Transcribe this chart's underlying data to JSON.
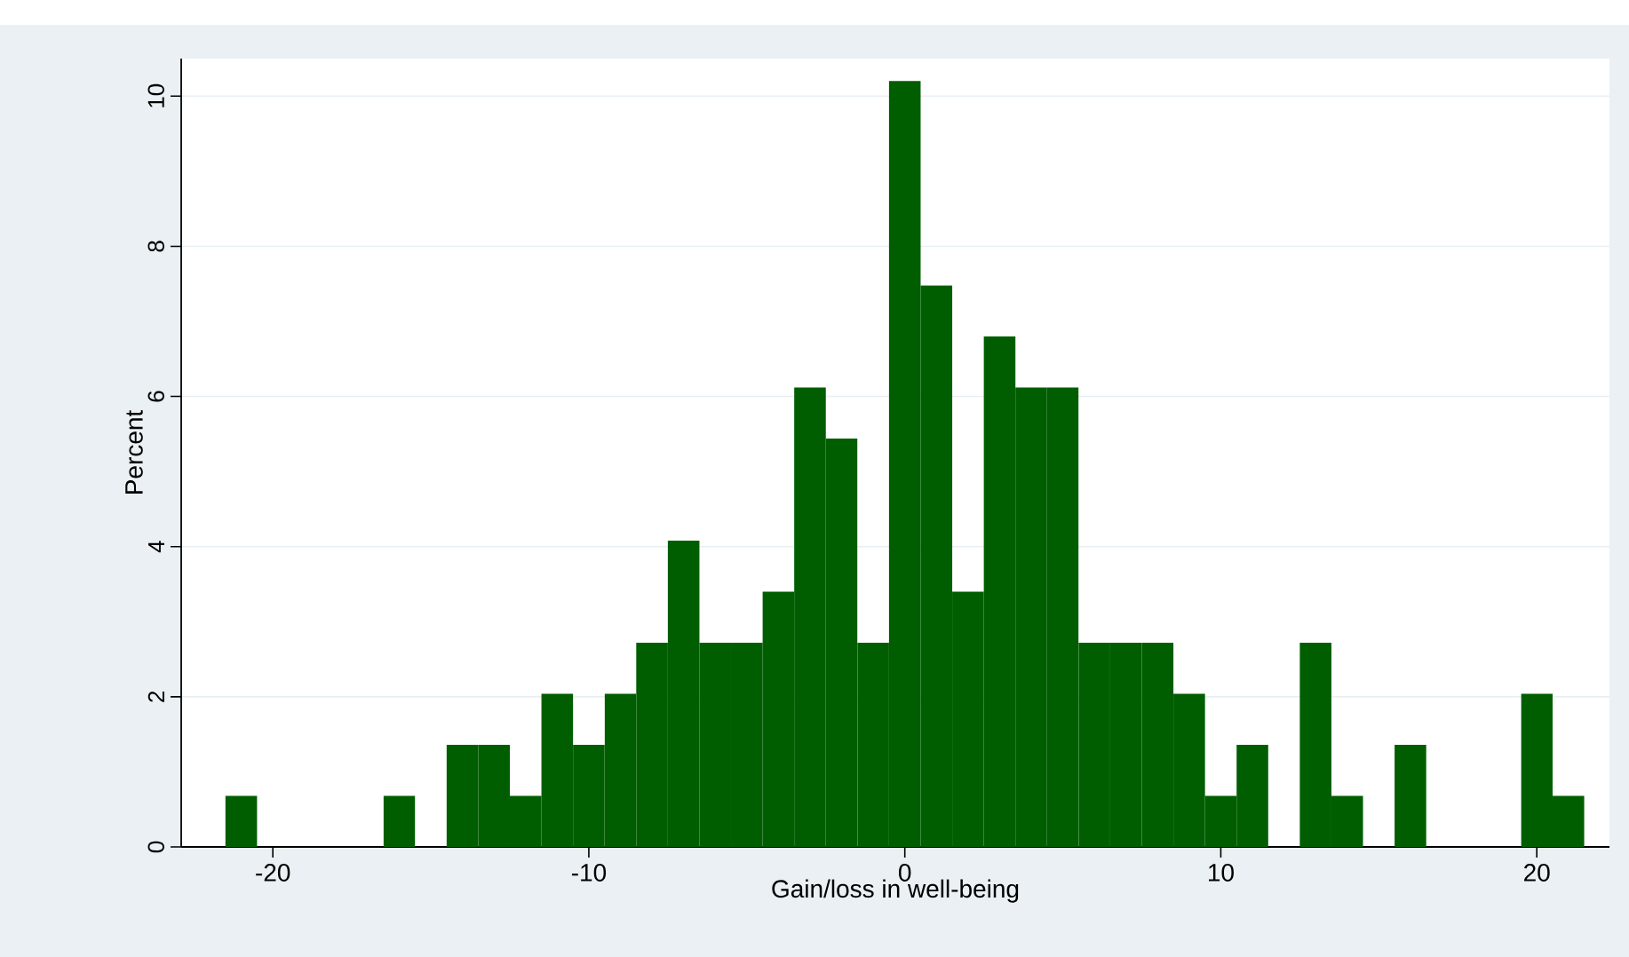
{
  "chart_data": {
    "type": "histogram",
    "xlabel": "Gain/loss in well-being",
    "ylabel": "Percent",
    "bins": [
      -21.5,
      -20.5,
      -19.5,
      -18.5,
      -17.5,
      -16.5,
      -15.5,
      -14.5,
      -13.5,
      -12.5,
      -11.5,
      -10.5,
      -9.5,
      -8.5,
      -7.5,
      -6.5,
      -5.5,
      -4.5,
      -3.5,
      -2.5,
      -1.5,
      -0.5,
      0.5,
      1.5,
      2.5,
      3.5,
      4.5,
      5.5,
      6.5,
      7.5,
      8.5,
      9.5,
      10.5,
      11.5,
      12.5,
      13.5,
      14.5,
      15.5,
      16.5,
      17.5,
      18.5,
      19.5,
      20.5,
      21.5
    ],
    "values": [
      0.68,
      0,
      0,
      0,
      0,
      0.68,
      0,
      1.36,
      1.36,
      0.68,
      2.04,
      1.36,
      2.04,
      2.72,
      4.08,
      2.72,
      2.72,
      3.4,
      6.12,
      5.44,
      2.72,
      10.2,
      7.48,
      3.4,
      6.8,
      6.12,
      6.12,
      2.72,
      2.72,
      2.72,
      2.04,
      0.68,
      1.36,
      0,
      2.72,
      0.68,
      0,
      1.36,
      0,
      0,
      0,
      2.04,
      0.68
    ],
    "color": "#005e00",
    "xlim": [
      -22.9,
      22.3
    ],
    "ylim": [
      0,
      10.5
    ],
    "xticks": [
      -20,
      -10,
      0,
      10,
      20
    ],
    "yticks": [
      0,
      2,
      4,
      6,
      8,
      10
    ],
    "grid": "y"
  }
}
